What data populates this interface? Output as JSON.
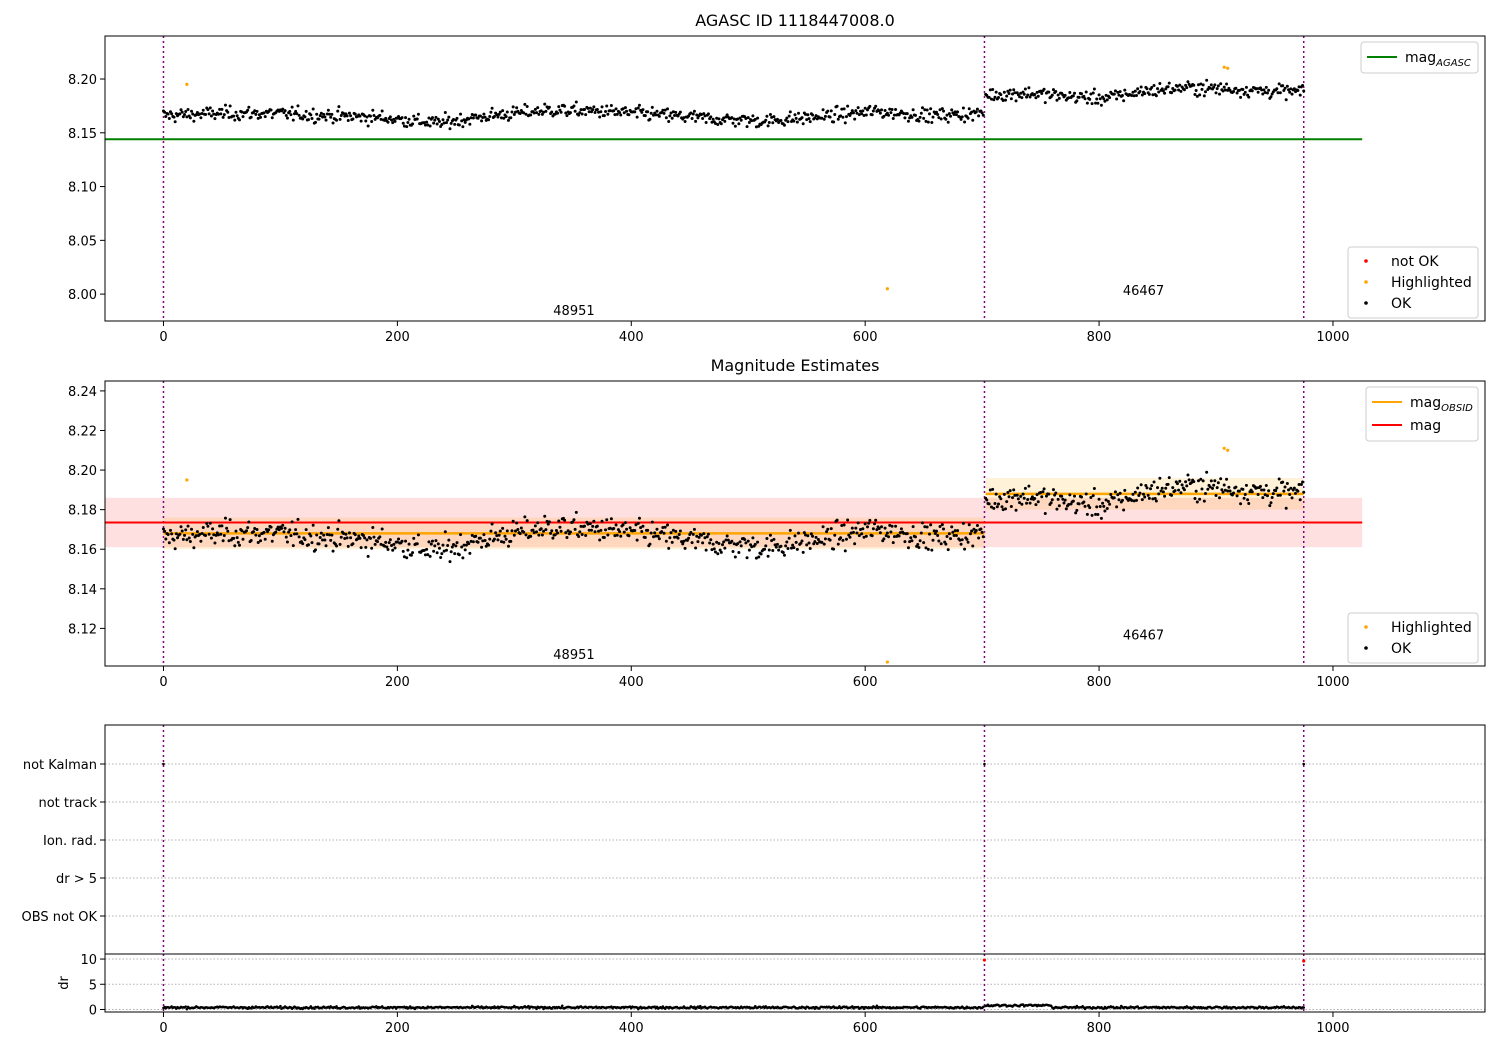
{
  "chart_data": [
    {
      "type": "scatter",
      "title": "AGASC ID 1118447008.0",
      "ylim": [
        7.975,
        8.24
      ],
      "xlim": [
        -50,
        1130
      ],
      "xticks": [
        0,
        200,
        400,
        600,
        800,
        1000
      ],
      "yticks": [
        8.0,
        8.05,
        8.1,
        8.15,
        8.2
      ],
      "ytick_labels": [
        "8.00",
        "8.05",
        "8.10",
        "8.15",
        "8.20"
      ],
      "obs_boundaries": [
        0,
        702,
        975
      ],
      "obs_labels": [
        {
          "text": "48951",
          "x": 351,
          "y": 7.985
        },
        {
          "text": "46467",
          "x": 838,
          "y": 8.004
        }
      ],
      "lines": [
        {
          "name": "mag_AGASC",
          "y": 8.144,
          "x": [
            -50,
            1025
          ],
          "color": "#008000"
        }
      ],
      "segments": [
        {
          "x": [
            0,
            702
          ],
          "base": [
            8.166,
            8.168,
            8.168,
            8.166,
            8.164,
            8.159,
            8.166,
            8.171,
            8.17,
            8.167,
            8.163,
            8.161,
            8.165,
            8.17,
            8.166,
            8.168
          ]
        },
        {
          "x": [
            703,
            975
          ],
          "base": [
            8.185,
            8.187,
            8.184,
            8.182,
            8.189,
            8.192,
            8.191,
            8.189,
            8.188
          ]
        }
      ],
      "highlighted": [
        [
          20,
          8.195
        ],
        [
          619,
          8.005
        ],
        [
          907,
          8.211
        ],
        [
          910,
          8.21
        ]
      ],
      "legend": [
        {
          "label": "not OK",
          "color": "#ff0000"
        },
        {
          "label": "Highlighted",
          "color": "#ffa500"
        },
        {
          "label": "OK",
          "color": "#000000"
        }
      ],
      "line_legend": {
        "label": "mag",
        "sub": "AGASC"
      }
    },
    {
      "type": "scatter",
      "title": "Magnitude Estimates",
      "ylim": [
        8.101,
        8.245
      ],
      "xlim": [
        -50,
        1130
      ],
      "xticks": [
        0,
        200,
        400,
        600,
        800,
        1000
      ],
      "yticks": [
        8.12,
        8.14,
        8.16,
        8.18,
        8.2,
        8.22,
        8.24
      ],
      "ytick_labels": [
        "8.12",
        "8.14",
        "8.16",
        "8.18",
        "8.20",
        "8.22",
        "8.24"
      ],
      "obs_boundaries": [
        0,
        702,
        975
      ],
      "obs_labels": [
        {
          "text": "48951",
          "x": 351,
          "y": 8.107
        },
        {
          "text": "46467",
          "x": 838,
          "y": 8.117
        }
      ],
      "mag": {
        "y": 8.1735,
        "band": [
          8.161,
          8.186
        ],
        "x": [
          -50,
          1025
        ],
        "color": "#ff0000"
      },
      "mag_obsid": [
        {
          "x": [
            0,
            702
          ],
          "y": 8.168,
          "band": [
            8.16,
            8.176
          ]
        },
        {
          "x": [
            703,
            975
          ],
          "y": 8.188,
          "band": [
            8.18,
            8.196
          ]
        }
      ],
      "highlighted": [
        [
          20,
          8.195
        ],
        [
          619,
          8.103
        ],
        [
          907,
          8.211
        ],
        [
          910,
          8.21
        ]
      ],
      "legend_lines": [
        {
          "label": "mag",
          "sub": "OBSID",
          "color": "#ffa500"
        },
        {
          "label": "mag",
          "sub": "",
          "color": "#ff0000"
        }
      ],
      "legend": [
        {
          "label": "Highlighted",
          "color": "#ffa500"
        },
        {
          "label": "OK",
          "color": "#000000"
        }
      ]
    },
    {
      "type": "scatter",
      "title": "",
      "flag_rows": [
        "not Kalman",
        "not track",
        "Ion. rad.",
        "dr > 5",
        "OBS not OK"
      ],
      "flag_points": [
        [
          0,
          "not Kalman"
        ],
        [
          702,
          "not Kalman"
        ],
        [
          975,
          "not Kalman"
        ]
      ],
      "obs_boundaries": [
        0,
        702,
        975
      ]
    },
    {
      "type": "scatter",
      "title": "",
      "ylabel": "dr",
      "ylim": [
        -0.5,
        11
      ],
      "xlim": [
        -50,
        1130
      ],
      "xticks": [
        0,
        200,
        400,
        600,
        800,
        1000
      ],
      "yticks": [
        0,
        5,
        10
      ],
      "obs_boundaries": [
        0,
        702,
        975
      ],
      "typical_dr": 0.4,
      "outliers": [
        [
          702,
          9.8
        ],
        [
          975,
          9.6
        ]
      ]
    }
  ]
}
